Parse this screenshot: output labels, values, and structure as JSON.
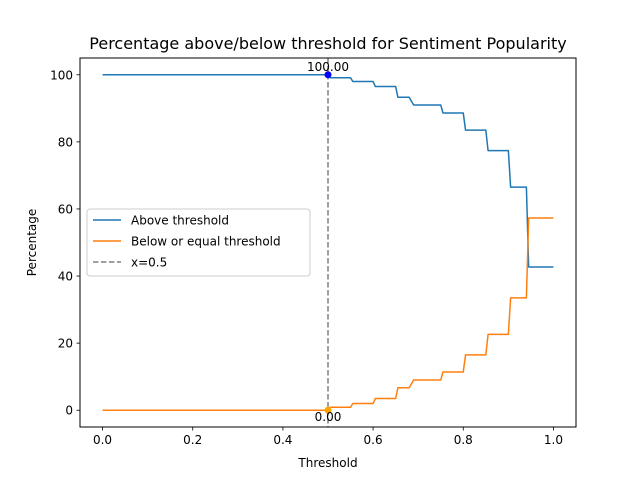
{
  "chart_data": {
    "type": "line",
    "title": "Percentage above/below threshold for Sentiment Popularity",
    "xlabel": "Threshold",
    "ylabel": "Percentage",
    "xlim": [
      -0.05,
      1.05
    ],
    "ylim": [
      -5,
      105
    ],
    "xticks": [
      0.0,
      0.2,
      0.4,
      0.6,
      0.8,
      1.0
    ],
    "xtick_labels": [
      "0.0",
      "0.2",
      "0.4",
      "0.6",
      "0.8",
      "1.0"
    ],
    "yticks": [
      0,
      20,
      40,
      60,
      80,
      100
    ],
    "ytick_labels": [
      "0",
      "20",
      "40",
      "60",
      "80",
      "100"
    ],
    "grid": false,
    "legend_position": "center-left",
    "x": [
      0.0,
      0.5,
      0.505,
      0.515,
      0.55,
      0.555,
      0.6,
      0.605,
      0.65,
      0.655,
      0.68,
      0.69,
      0.7,
      0.75,
      0.755,
      0.8,
      0.805,
      0.85,
      0.855,
      0.9,
      0.905,
      0.94,
      0.945,
      1.0
    ],
    "series": [
      {
        "name": "Above threshold",
        "color": "#1f77b4",
        "values": [
          100,
          100,
          99.1,
          99.1,
          99.1,
          98.0,
          98.0,
          96.5,
          96.5,
          93.3,
          93.3,
          91.0,
          91.0,
          91.0,
          88.6,
          88.6,
          83.5,
          83.5,
          77.4,
          77.4,
          66.5,
          66.5,
          42.7,
          42.7
        ]
      },
      {
        "name": "Below or equal threshold",
        "color": "#ff7f0e",
        "values": [
          0,
          0,
          0.9,
          0.9,
          0.9,
          2.0,
          2.0,
          3.5,
          3.5,
          6.7,
          6.7,
          9.0,
          9.0,
          9.0,
          11.4,
          11.4,
          16.5,
          16.5,
          22.6,
          22.6,
          33.5,
          33.5,
          57.3,
          57.3
        ]
      }
    ],
    "vline": {
      "x": 0.5,
      "label": "x=0.5",
      "color": "#808080"
    },
    "annotations": [
      {
        "x": 0.5,
        "y": 100,
        "text": "100.00",
        "marker_color": "#0000ff",
        "position": "above"
      },
      {
        "x": 0.5,
        "y": 0,
        "text": "0.00",
        "marker_color": "#ffa500",
        "position": "below"
      }
    ]
  }
}
